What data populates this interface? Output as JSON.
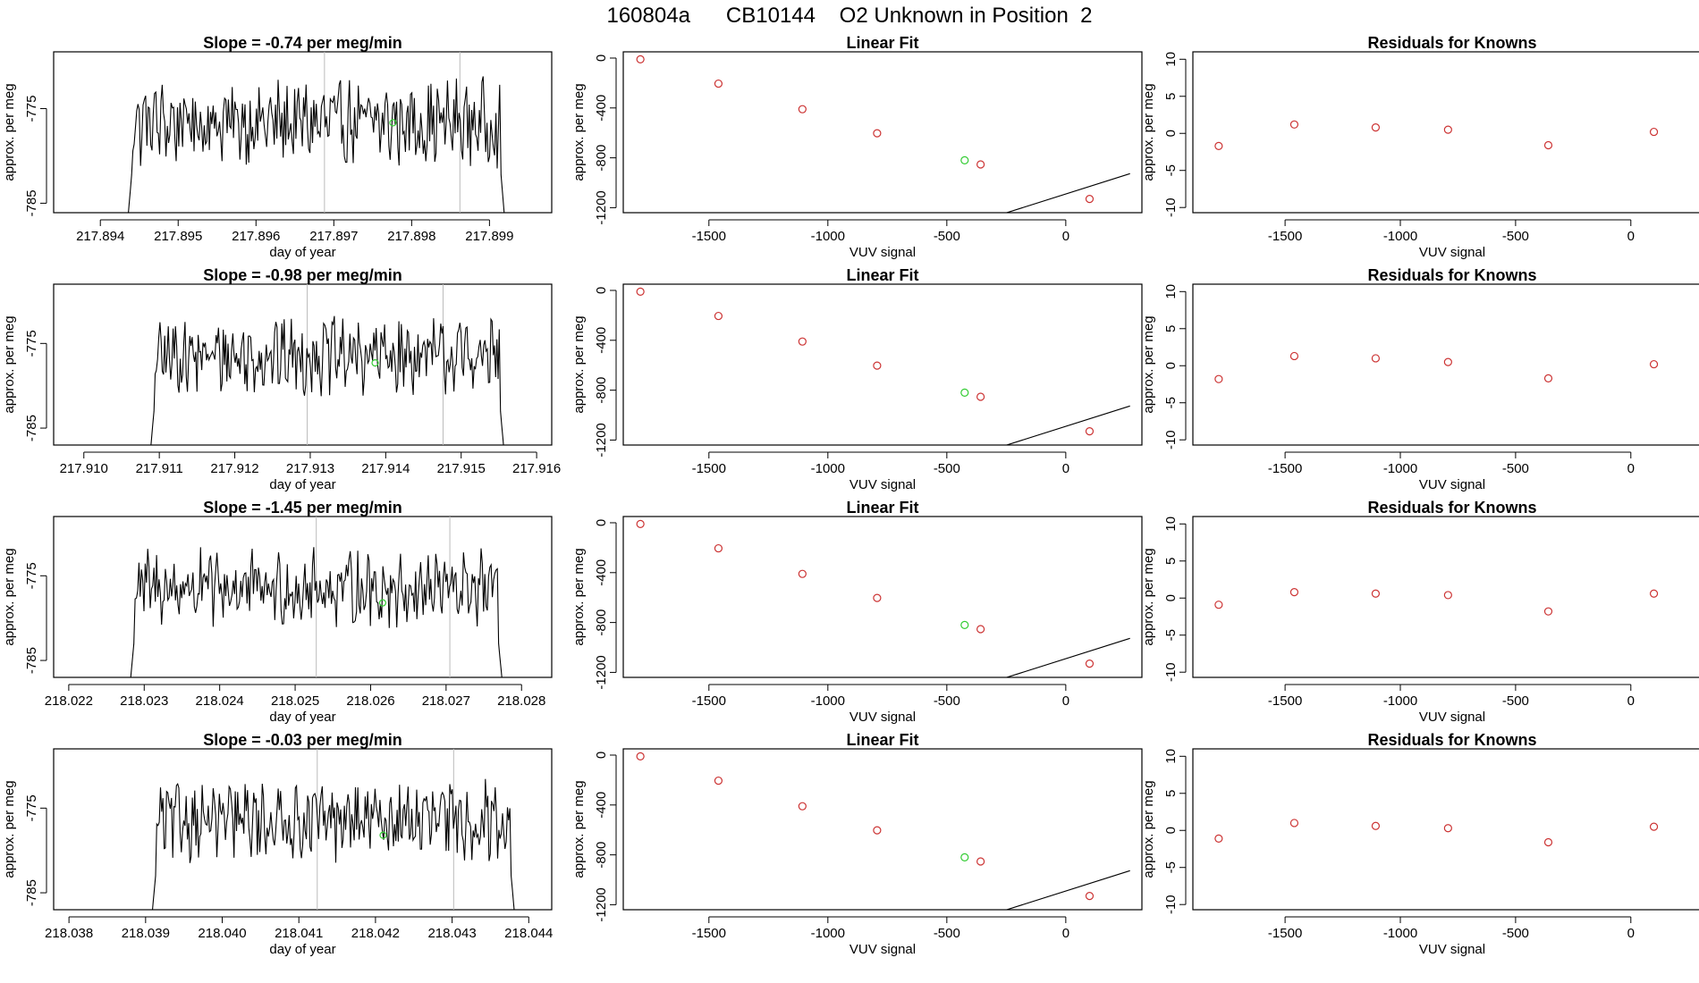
{
  "figure_title": "160804a      CB10144    O2 Unknown in Position  2",
  "chart_data": [
    {
      "type": "line",
      "panel": "timeseries",
      "row": 0,
      "title": "Slope =  -0.74  per meg/min",
      "xlabel": "day of year",
      "ylabel": "approx. per meg",
      "xlim": [
        217.8934,
        217.8998
      ],
      "ylim": [
        -786,
        -769
      ],
      "xticks": [
        217.894,
        217.895,
        217.896,
        217.897,
        217.898,
        217.899
      ],
      "xtick_labels": [
        "217.894",
        "217.895",
        "217.896",
        "217.897",
        "217.898",
        "217.899"
      ],
      "yticks": [
        -775,
        -785
      ],
      "ytick_labels": [
        "-775",
        "-785"
      ],
      "vlines": [
        217.89688,
        217.89862
      ],
      "start": 217.89432,
      "end": 217.89923,
      "unknown_point": {
        "x": 217.89776,
        "y": -776.5
      },
      "color": "#000000",
      "marker_color": "#33cc33"
    },
    {
      "type": "line",
      "panel": "timeseries",
      "row": 1,
      "title": "Slope =  -0.98  per meg/min",
      "xlabel": "day of year",
      "ylabel": "approx. per meg",
      "xlim": [
        217.9096,
        217.9162
      ],
      "ylim": [
        -787,
        -768
      ],
      "xticks": [
        217.91,
        217.911,
        217.912,
        217.913,
        217.914,
        217.915,
        217.916
      ],
      "xtick_labels": [
        "217.910",
        "217.911",
        "217.912",
        "217.913",
        "217.914",
        "217.915",
        "217.916"
      ],
      "yticks": [
        -775,
        -785
      ],
      "ytick_labels": [
        "-775",
        "-785"
      ],
      "vlines": [
        217.91296,
        217.91476
      ],
      "start": 217.91085,
      "end": 217.9156,
      "unknown_point": {
        "x": 217.91386,
        "y": -777.3
      },
      "color": "#000000",
      "marker_color": "#33cc33"
    },
    {
      "type": "line",
      "panel": "timeseries",
      "row": 2,
      "title": "Slope =  -1.45  per meg/min",
      "xlabel": "day of year",
      "ylabel": "approx. per meg",
      "xlim": [
        218.0218,
        218.0284
      ],
      "ylim": [
        -787,
        -768
      ],
      "xticks": [
        218.022,
        218.023,
        218.024,
        218.025,
        218.026,
        218.027,
        218.028
      ],
      "xtick_labels": [
        "218.022",
        "218.023",
        "218.024",
        "218.025",
        "218.026",
        "218.027",
        "218.028"
      ],
      "yticks": [
        -775,
        -785
      ],
      "ytick_labels": [
        "-775",
        "-785"
      ],
      "vlines": [
        218.02528,
        218.02705
      ],
      "start": 218.02278,
      "end": 218.02778,
      "unknown_point": {
        "x": 218.02616,
        "y": -778.2
      },
      "color": "#000000",
      "marker_color": "#33cc33"
    },
    {
      "type": "line",
      "panel": "timeseries",
      "row": 3,
      "title": "Slope =  -0.03  per meg/min",
      "xlabel": "day of year",
      "ylabel": "approx. per meg",
      "xlim": [
        218.0378,
        218.0443
      ],
      "ylim": [
        -787,
        -768
      ],
      "xticks": [
        218.038,
        218.039,
        218.04,
        218.041,
        218.042,
        218.043,
        218.044
      ],
      "xtick_labels": [
        "218.038",
        "218.039",
        "218.040",
        "218.041",
        "218.042",
        "218.043",
        "218.044"
      ],
      "yticks": [
        -775,
        -785
      ],
      "ytick_labels": [
        "-775",
        "-785"
      ],
      "vlines": [
        218.04124,
        218.04302
      ],
      "start": 218.03905,
      "end": 218.04385,
      "unknown_point": {
        "x": 218.0421,
        "y": -778.2
      },
      "color": "#000000",
      "marker_color": "#33cc33"
    },
    {
      "type": "scatter",
      "panel": "fit",
      "row": 0,
      "title": "Linear Fit",
      "xlabel": "VUV signal",
      "ylabel": "approx. per meg",
      "xlim": [
        -1860,
        320
      ],
      "ylim": [
        -1240,
        50
      ],
      "xticks": [
        -1500,
        -1000,
        -500,
        0
      ],
      "xtick_labels": [
        "-1500",
        "-1000",
        "-500",
        "0"
      ],
      "yticks": [
        0,
        -400,
        -800,
        -1200
      ],
      "ytick_labels": [
        "0",
        "-400",
        "-800",
        "-1200"
      ],
      "line": {
        "slope": 0.6042,
        "intercept": -1090,
        "x_from": -1790,
        "x_to": 270
      },
      "knowns": [
        {
          "x": -1788,
          "y": -10
        },
        {
          "x": -1460,
          "y": -205
        },
        {
          "x": -1107,
          "y": -410
        },
        {
          "x": -793,
          "y": -603
        },
        {
          "x": -358,
          "y": -853
        },
        {
          "x": 100,
          "y": -1130
        }
      ],
      "unknown": {
        "x": -425,
        "y": -820
      },
      "known_color": "#cc3333",
      "unknown_color": "#33cc33"
    },
    {
      "type": "scatter",
      "panel": "fit",
      "row": 1,
      "title": "Linear Fit",
      "xlabel": "VUV signal",
      "ylabel": "approx. per meg",
      "xlim": [
        -1860,
        320
      ],
      "ylim": [
        -1240,
        50
      ],
      "xticks": [
        -1500,
        -1000,
        -500,
        0
      ],
      "xtick_labels": [
        "-1500",
        "-1000",
        "-500",
        "0"
      ],
      "yticks": [
        0,
        -400,
        -800,
        -1200
      ],
      "ytick_labels": [
        "0",
        "-400",
        "-800",
        "-1200"
      ],
      "line": {
        "slope": 0.6042,
        "intercept": -1090,
        "x_from": -1790,
        "x_to": 270
      },
      "knowns": [
        {
          "x": -1788,
          "y": -10
        },
        {
          "x": -1460,
          "y": -205
        },
        {
          "x": -1107,
          "y": -410
        },
        {
          "x": -793,
          "y": -603
        },
        {
          "x": -358,
          "y": -853
        },
        {
          "x": 100,
          "y": -1130
        }
      ],
      "unknown": {
        "x": -425,
        "y": -820
      },
      "known_color": "#cc3333",
      "unknown_color": "#33cc33"
    },
    {
      "type": "scatter",
      "panel": "fit",
      "row": 2,
      "title": "Linear Fit",
      "xlabel": "VUV signal",
      "ylabel": "approx. per meg",
      "xlim": [
        -1860,
        320
      ],
      "ylim": [
        -1240,
        50
      ],
      "xticks": [
        -1500,
        -1000,
        -500,
        0
      ],
      "xtick_labels": [
        "-1500",
        "-1000",
        "-500",
        "0"
      ],
      "yticks": [
        0,
        -400,
        -800,
        -1200
      ],
      "ytick_labels": [
        "0",
        "-400",
        "-800",
        "-1200"
      ],
      "line": {
        "slope": 0.6042,
        "intercept": -1090,
        "x_from": -1790,
        "x_to": 270
      },
      "knowns": [
        {
          "x": -1788,
          "y": -10
        },
        {
          "x": -1460,
          "y": -205
        },
        {
          "x": -1107,
          "y": -410
        },
        {
          "x": -793,
          "y": -603
        },
        {
          "x": -358,
          "y": -853
        },
        {
          "x": 100,
          "y": -1130
        }
      ],
      "unknown": {
        "x": -425,
        "y": -820
      },
      "known_color": "#cc3333",
      "unknown_color": "#33cc33"
    },
    {
      "type": "scatter",
      "panel": "fit",
      "row": 3,
      "title": "Linear Fit",
      "xlabel": "VUV signal",
      "ylabel": "approx. per meg",
      "xlim": [
        -1860,
        320
      ],
      "ylim": [
        -1240,
        50
      ],
      "xticks": [
        -1500,
        -1000,
        -500,
        0
      ],
      "xtick_labels": [
        "-1500",
        "-1000",
        "-500",
        "0"
      ],
      "yticks": [
        0,
        -400,
        -800,
        -1200
      ],
      "ytick_labels": [
        "0",
        "-400",
        "-800",
        "-1200"
      ],
      "line": {
        "slope": 0.6042,
        "intercept": -1090,
        "x_from": -1790,
        "x_to": 270
      },
      "knowns": [
        {
          "x": -1788,
          "y": -10
        },
        {
          "x": -1460,
          "y": -205
        },
        {
          "x": -1107,
          "y": -410
        },
        {
          "x": -793,
          "y": -603
        },
        {
          "x": -358,
          "y": -853
        },
        {
          "x": 100,
          "y": -1130
        }
      ],
      "unknown": {
        "x": -425,
        "y": -820
      },
      "known_color": "#cc3333",
      "unknown_color": "#33cc33"
    },
    {
      "type": "scatter",
      "panel": "residuals",
      "row": 0,
      "title": "Residuals for Knowns",
      "xlabel": "VUV signal",
      "ylabel": "approx. per meg",
      "xlim": [
        -1900,
        350
      ],
      "ylim": [
        -10.7,
        11
      ],
      "xticks": [
        -1500,
        -1000,
        -500,
        0
      ],
      "xtick_labels": [
        "-1500",
        "-1000",
        "-500",
        "0"
      ],
      "yticks": [
        10,
        5,
        0,
        -5,
        -10
      ],
      "ytick_labels": [
        "10",
        "5",
        "0",
        "-5",
        "-10"
      ],
      "points": [
        {
          "x": -1788,
          "y": -1.7
        },
        {
          "x": -1460,
          "y": 1.2
        },
        {
          "x": -1107,
          "y": 0.8
        },
        {
          "x": -793,
          "y": 0.5
        },
        {
          "x": -358,
          "y": -1.6
        },
        {
          "x": 100,
          "y": 0.2
        }
      ],
      "color": "#cc3333"
    },
    {
      "type": "scatter",
      "panel": "residuals",
      "row": 1,
      "title": "Residuals for Knowns",
      "xlabel": "VUV signal",
      "ylabel": "approx. per meg",
      "xlim": [
        -1900,
        350
      ],
      "ylim": [
        -10.7,
        11
      ],
      "xticks": [
        -1500,
        -1000,
        -500,
        0
      ],
      "xtick_labels": [
        "-1500",
        "-1000",
        "-500",
        "0"
      ],
      "yticks": [
        10,
        5,
        0,
        -5,
        -10
      ],
      "ytick_labels": [
        "10",
        "5",
        "0",
        "-5",
        "-10"
      ],
      "points": [
        {
          "x": -1788,
          "y": -1.8
        },
        {
          "x": -1460,
          "y": 1.3
        },
        {
          "x": -1107,
          "y": 1.0
        },
        {
          "x": -793,
          "y": 0.5
        },
        {
          "x": -358,
          "y": -1.7
        },
        {
          "x": 100,
          "y": 0.2
        }
      ],
      "color": "#cc3333"
    },
    {
      "type": "scatter",
      "panel": "residuals",
      "row": 2,
      "title": "Residuals for Knowns",
      "xlabel": "VUV signal",
      "ylabel": "approx. per meg",
      "xlim": [
        -1900,
        350
      ],
      "ylim": [
        -10.7,
        11
      ],
      "xticks": [
        -1500,
        -1000,
        -500,
        0
      ],
      "xtick_labels": [
        "-1500",
        "-1000",
        "-500",
        "0"
      ],
      "yticks": [
        10,
        5,
        0,
        -5,
        -10
      ],
      "ytick_labels": [
        "10",
        "5",
        "0",
        "-5",
        "-10"
      ],
      "points": [
        {
          "x": -1788,
          "y": -0.9
        },
        {
          "x": -1460,
          "y": 0.8
        },
        {
          "x": -1107,
          "y": 0.6
        },
        {
          "x": -793,
          "y": 0.4
        },
        {
          "x": -358,
          "y": -1.8
        },
        {
          "x": 100,
          "y": 0.6
        }
      ],
      "color": "#cc3333"
    },
    {
      "type": "scatter",
      "panel": "residuals",
      "row": 3,
      "title": "Residuals for Knowns",
      "xlabel": "VUV signal",
      "ylabel": "approx. per meg",
      "xlim": [
        -1900,
        350
      ],
      "ylim": [
        -10.7,
        11
      ],
      "xticks": [
        -1500,
        -1000,
        -500,
        0
      ],
      "xtick_labels": [
        "-1500",
        "-1000",
        "-500",
        "0"
      ],
      "yticks": [
        10,
        5,
        0,
        -5,
        -10
      ],
      "ytick_labels": [
        "10",
        "5",
        "0",
        "-5",
        "-10"
      ],
      "points": [
        {
          "x": -1788,
          "y": -1.1
        },
        {
          "x": -1460,
          "y": 1.0
        },
        {
          "x": -1107,
          "y": 0.6
        },
        {
          "x": -793,
          "y": 0.3
        },
        {
          "x": -358,
          "y": -1.6
        },
        {
          "x": 100,
          "y": 0.5
        }
      ],
      "color": "#cc3333"
    }
  ]
}
